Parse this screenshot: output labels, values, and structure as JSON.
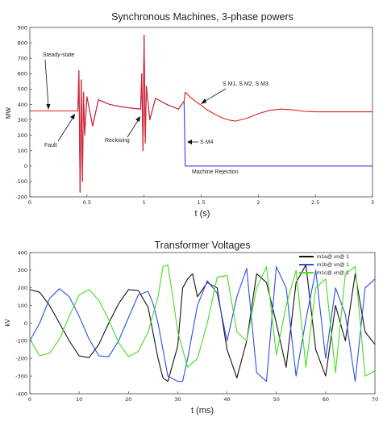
{
  "chart_data": [
    {
      "type": "line",
      "title": "Synchronous Machines, 3-phase powers",
      "xlabel": "t (s)",
      "ylabel": "MW",
      "xlim": [
        0,
        3
      ],
      "ylim": [
        -200,
        900
      ],
      "xticks": [
        0,
        0.5,
        1,
        1.5,
        2,
        2.5,
        3
      ],
      "xtick_labels": [
        "0",
        "0.5",
        "1",
        "1.5",
        "2",
        "2.5",
        "3"
      ],
      "yticks": [
        -200,
        -100,
        0,
        100,
        200,
        300,
        400,
        500,
        600,
        700,
        800,
        900
      ],
      "ytick_labels": [
        "-200",
        "-100",
        "0",
        "100",
        "200",
        "300",
        "400",
        "500",
        "600",
        "700",
        "800",
        "900"
      ],
      "grid": false,
      "series": [
        {
          "name": "S M1, S M2, S M3",
          "color": "#dd2222",
          "x": [
            0,
            0.42,
            0.43,
            0.44,
            0.45,
            0.46,
            0.47,
            0.48,
            0.5,
            0.55,
            0.6,
            0.7,
            0.8,
            0.9,
            0.97,
            0.98,
            0.99,
            1.0,
            1.01,
            1.02,
            1.05,
            1.1,
            1.2,
            1.3,
            1.35,
            1.36,
            1.4,
            1.45,
            1.5,
            1.55,
            1.6,
            1.65,
            1.7,
            1.75,
            1.8,
            1.9,
            2.0,
            2.1,
            2.2,
            2.3,
            2.4,
            2.5,
            2.6,
            2.7,
            2.8,
            3.0
          ],
          "y": [
            358,
            358,
            620,
            -170,
            560,
            -100,
            480,
            200,
            450,
            260,
            430,
            400,
            385,
            375,
            370,
            600,
            100,
            850,
            150,
            520,
            300,
            440,
            400,
            370,
            420,
            480,
            450,
            420,
            395,
            365,
            345,
            325,
            308,
            298,
            292,
            310,
            340,
            362,
            370,
            365,
            355,
            352,
            352,
            352,
            352,
            352
          ]
        },
        {
          "name": "S M4",
          "color": "#3a3af0",
          "x": [
            0,
            0.42,
            0.43,
            0.44,
            0.45,
            0.46,
            0.47,
            0.48,
            0.5,
            0.55,
            0.6,
            0.7,
            0.8,
            0.9,
            0.97,
            0.98,
            0.99,
            1.0,
            1.01,
            1.02,
            1.05,
            1.1,
            1.2,
            1.3,
            1.35,
            1.36,
            1.4,
            2.0,
            3.0
          ],
          "y": [
            358,
            358,
            620,
            -170,
            560,
            -100,
            480,
            200,
            450,
            260,
            430,
            400,
            385,
            375,
            370,
            600,
            100,
            850,
            150,
            520,
            300,
            440,
            400,
            370,
            420,
            0,
            0,
            0,
            0
          ]
        }
      ],
      "annotations": [
        {
          "text": "Steady-state",
          "x": 0.14,
          "y": 358
        },
        {
          "text": "Fault",
          "x": 0.42,
          "y": 358
        },
        {
          "text": "Reclosing",
          "x": 1.0,
          "y": 380
        },
        {
          "text": "S M1, S M2, S M3",
          "x": 1.45,
          "y": 400
        },
        {
          "text": "S M4",
          "x": 1.37,
          "y": 15
        },
        {
          "text": "Machine Rejection",
          "x": 1.36,
          "y": -20
        }
      ]
    },
    {
      "type": "line",
      "title": "Transformer Voltages",
      "xlabel": "t (ms)",
      "ylabel": "kV",
      "xlim": [
        0,
        70
      ],
      "ylim": [
        -400,
        400
      ],
      "xticks": [
        0,
        10,
        20,
        30,
        40,
        50,
        60,
        70
      ],
      "xtick_labels": [
        "0",
        "10",
        "20",
        "30",
        "40",
        "50",
        "60",
        "70"
      ],
      "yticks": [
        -400,
        -300,
        -200,
        -100,
        0,
        100,
        200,
        300,
        400
      ],
      "ytick_labels": [
        "-400",
        "-300",
        "-200",
        "-100",
        "0",
        "100",
        "200",
        "300",
        "400"
      ],
      "grid": false,
      "legend_position": "top-right",
      "series": [
        {
          "name": "m1a@ vn@ 1",
          "color": "#111111",
          "x": [
            0,
            2,
            4,
            6,
            8,
            10,
            12,
            14,
            16,
            18,
            20,
            22,
            24,
            26,
            27,
            28,
            30,
            31,
            32,
            33,
            34,
            36,
            38,
            40,
            42,
            44,
            46,
            48,
            50,
            52,
            54,
            56,
            58,
            60,
            62,
            64,
            66,
            68,
            70
          ],
          "y": [
            190,
            175,
            100,
            0,
            -100,
            -185,
            -195,
            -120,
            0,
            110,
            190,
            185,
            90,
            -200,
            -310,
            -330,
            -130,
            200,
            250,
            280,
            150,
            230,
            200,
            -150,
            -310,
            -100,
            280,
            230,
            0,
            -250,
            230,
            330,
            -150,
            -300,
            100,
            -100,
            280,
            -50,
            -120
          ]
        },
        {
          "name": "m1b@ vn@ 1",
          "color": "#2c50e0",
          "x": [
            0,
            2,
            4,
            6,
            8,
            10,
            12,
            14,
            16,
            18,
            20,
            22,
            24,
            25,
            26,
            28,
            30,
            31,
            32,
            34,
            36,
            38,
            40,
            42,
            44,
            46,
            48,
            50,
            52,
            54,
            56,
            58,
            60,
            62,
            64,
            66,
            68,
            70
          ],
          "y": [
            -100,
            0,
            140,
            195,
            150,
            40,
            -90,
            -185,
            -190,
            -100,
            30,
            160,
            180,
            110,
            0,
            -300,
            -330,
            -330,
            -200,
            100,
            240,
            170,
            -100,
            150,
            310,
            -280,
            -330,
            320,
            200,
            -300,
            20,
            300,
            -200,
            200,
            50,
            -330,
            200,
            250
          ]
        },
        {
          "name": "m1c@ vn@ 1",
          "color": "#44dd22",
          "x": [
            0,
            2,
            4,
            6,
            8,
            10,
            12,
            14,
            16,
            18,
            20,
            22,
            24,
            26,
            27,
            28,
            29,
            30,
            32,
            34,
            36,
            38,
            40,
            42,
            44,
            46,
            48,
            50,
            52,
            54,
            56,
            58,
            60,
            62,
            64,
            66,
            68,
            70
          ],
          "y": [
            -90,
            -185,
            -170,
            -90,
            40,
            160,
            190,
            130,
            20,
            -110,
            -190,
            -160,
            -50,
            150,
            320,
            330,
            150,
            -50,
            -250,
            -200,
            0,
            260,
            270,
            -50,
            -100,
            200,
            320,
            -180,
            100,
            300,
            -250,
            200,
            250,
            -280,
            280,
            320,
            -300,
            -270
          ]
        }
      ]
    }
  ]
}
